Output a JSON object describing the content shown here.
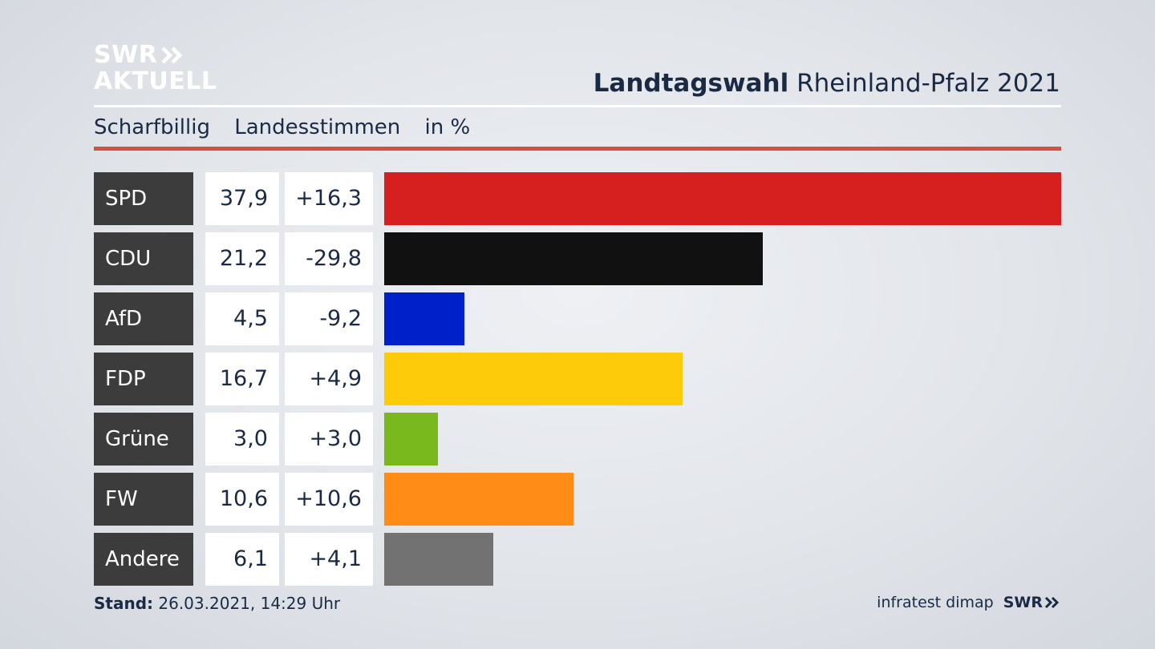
{
  "logo": {
    "line1": "SWR",
    "line2": "AKTUELL",
    "chevron_icon": "double-chevron-icon"
  },
  "header": {
    "title_bold": "Landtagswahl",
    "title_rest": "Rheinland-Pfalz 2021"
  },
  "subheader": {
    "place": "Scharfbillig",
    "type": "Landesstimmen",
    "unit": "in %"
  },
  "colors": {
    "accent": "#d2513f",
    "party_label_bg": "#3c3c3c"
  },
  "chart_data": {
    "type": "bar",
    "title": "",
    "xlabel": "",
    "ylabel": "",
    "categories": [
      "SPD",
      "CDU",
      "AfD",
      "FDP",
      "Grüne",
      "FW",
      "Andere"
    ],
    "values": [
      37.9,
      21.2,
      4.5,
      16.7,
      3.0,
      10.6,
      6.1
    ],
    "values_label": [
      "37,9",
      "21,2",
      "4,5",
      "16,7",
      "3,0",
      "10,6",
      "6,1"
    ],
    "diffs_label": [
      "+16,3",
      "-29,8",
      "-9,2",
      "+4,9",
      "+3,0",
      "+10,6",
      "+4,1"
    ],
    "colors": [
      "#d61f1f",
      "#111111",
      "#0021c9",
      "#fecb0a",
      "#7ab91e",
      "#fe8c17",
      "#727272"
    ],
    "xlim": [
      0,
      37.9
    ]
  },
  "footer": {
    "stand_label": "Stand:",
    "stand_value": "26.03.2021, 14:29 Uhr",
    "source": "infratest dimap",
    "brand": "SWR"
  }
}
